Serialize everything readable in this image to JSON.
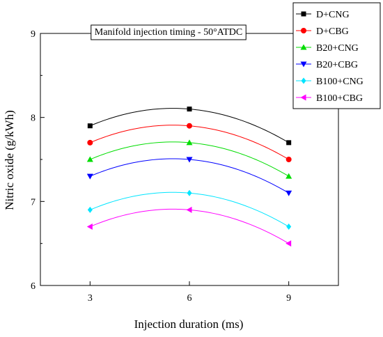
{
  "chart_data": {
    "type": "line",
    "title": "",
    "annotation": "Manifold injection timing - 50°ATDC",
    "xlabel": "Injection duration (ms)",
    "ylabel": "Nitric oxide (g/kWh)",
    "x": [
      3,
      6,
      9
    ],
    "x_ticks": [
      "3",
      "6",
      "9"
    ],
    "xlim": [
      1.5,
      10.5
    ],
    "ylim": [
      6,
      9
    ],
    "y_ticks": [
      "6",
      "7",
      "8",
      "9"
    ],
    "legend_position": "top-right",
    "grid": false,
    "series": [
      {
        "name": "D+CNG",
        "values": [
          7.9,
          8.1,
          7.7
        ],
        "color": "#000000",
        "marker": "square"
      },
      {
        "name": "D+CBG",
        "values": [
          7.7,
          7.9,
          7.5
        ],
        "color": "#ff0000",
        "marker": "circle"
      },
      {
        "name": "B20+CNG",
        "values": [
          7.5,
          7.7,
          7.3
        ],
        "color": "#00dd00",
        "marker": "triangle-up"
      },
      {
        "name": "B20+CBG",
        "values": [
          7.3,
          7.5,
          7.1
        ],
        "color": "#0000ff",
        "marker": "triangle-down"
      },
      {
        "name": "B100+CNG",
        "values": [
          6.9,
          7.1,
          6.7
        ],
        "color": "#00e5ff",
        "marker": "diamond"
      },
      {
        "name": "B100+CBG",
        "values": [
          6.7,
          6.9,
          6.5
        ],
        "color": "#ff00ff",
        "marker": "triangle-left"
      }
    ]
  }
}
